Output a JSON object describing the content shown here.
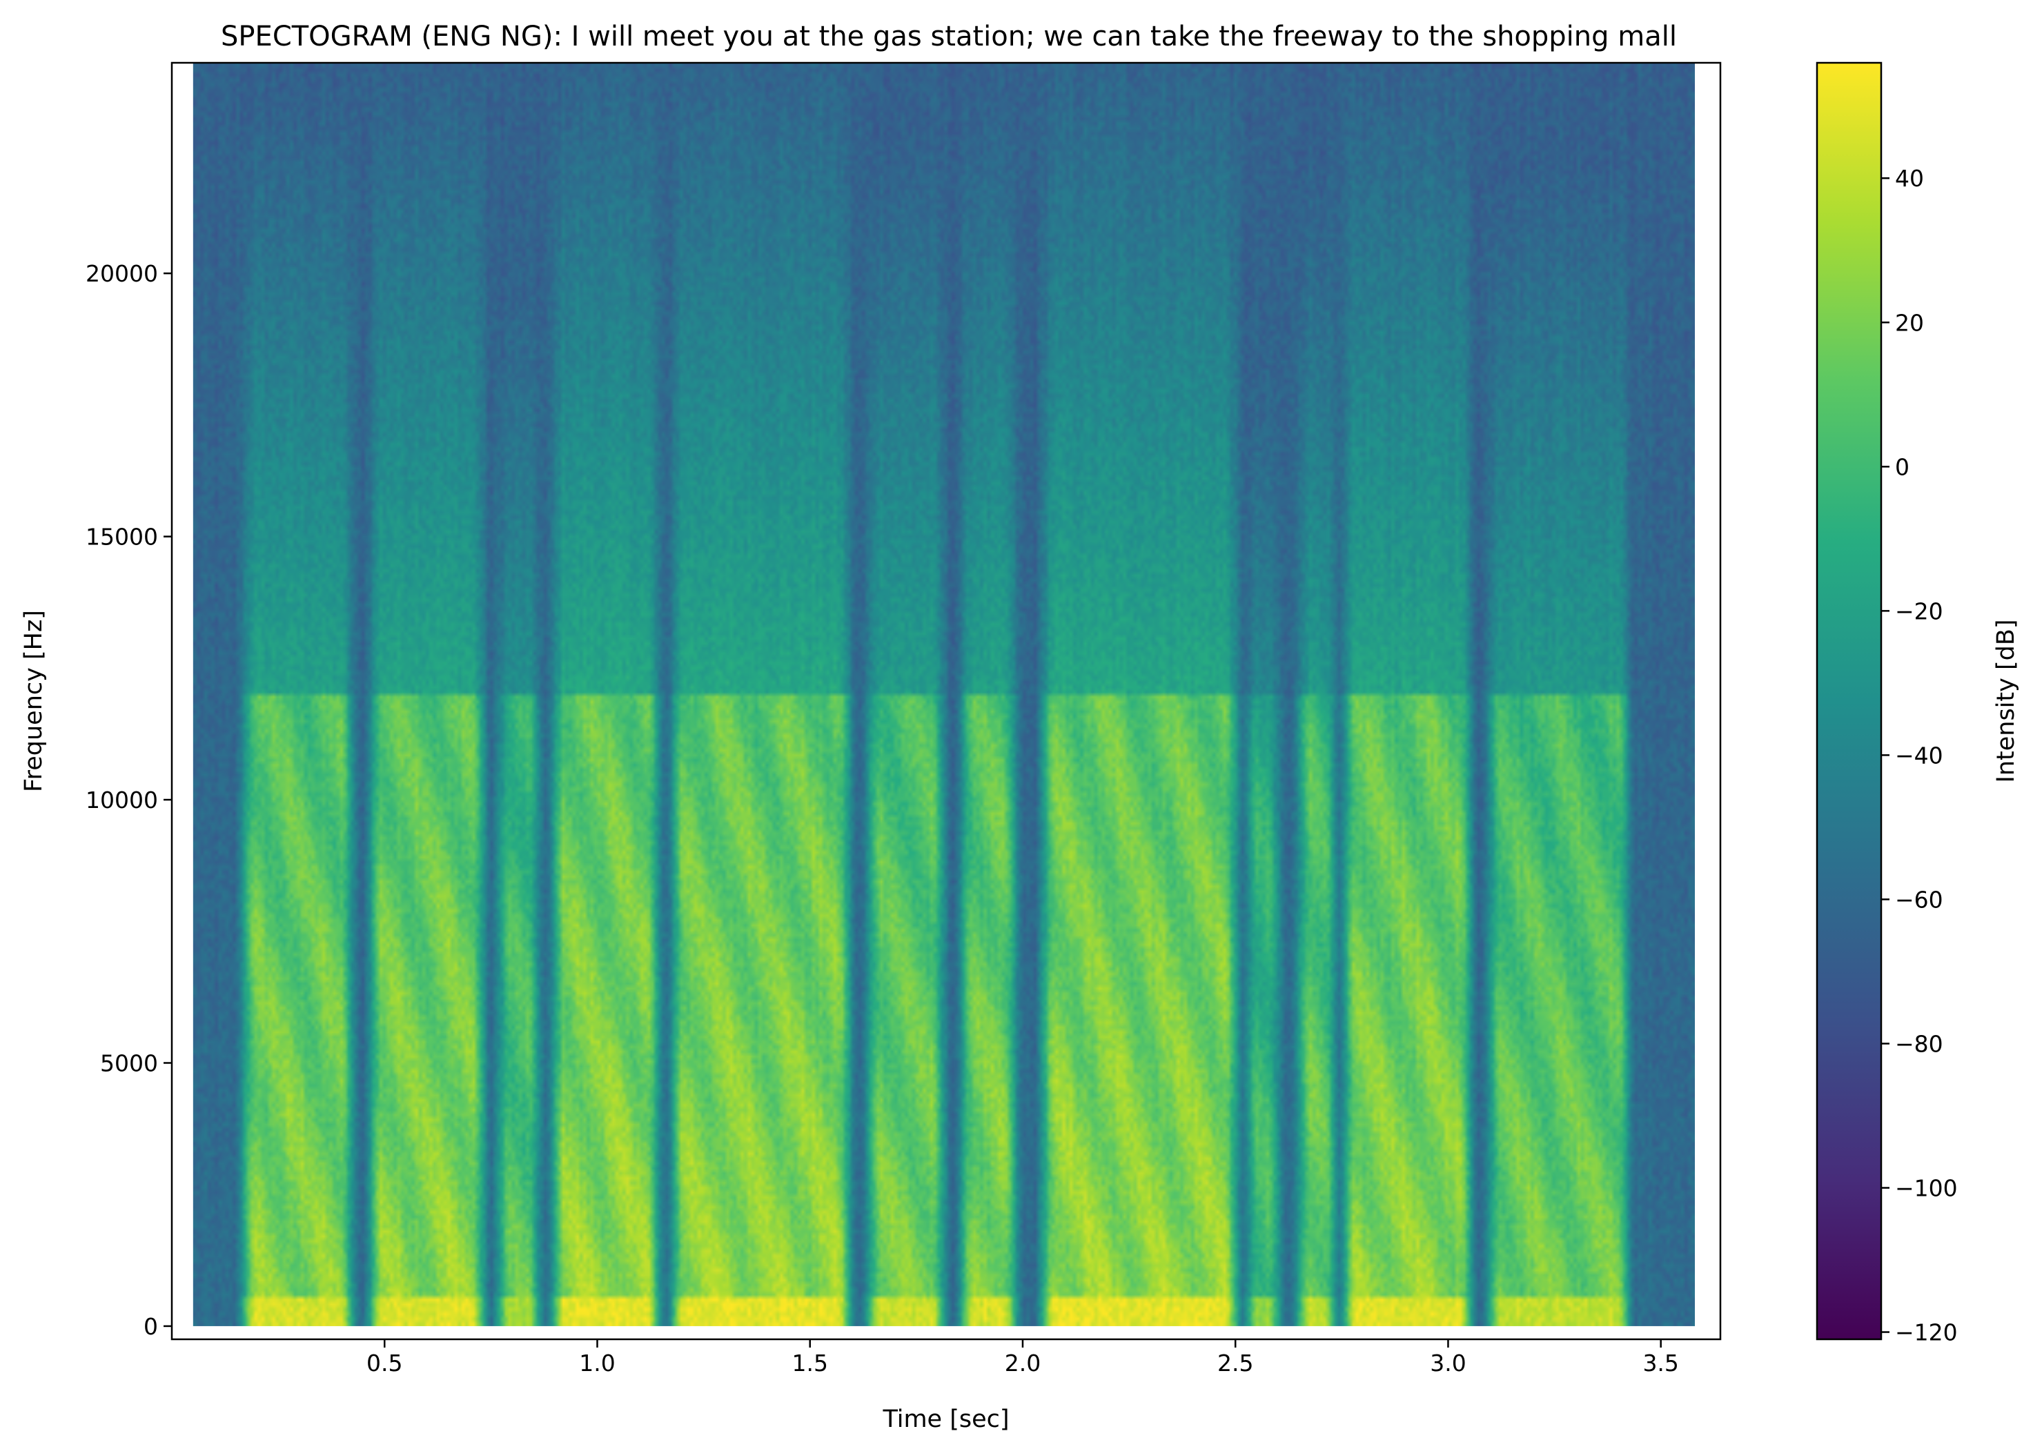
{
  "chart_data": {
    "type": "heatmap",
    "title": "SPECTOGRAM (ENG NG): I will meet you at the gas station; we can take the freeway to the shopping mall",
    "xlabel": "Time [sec]",
    "ylabel": "Frequency [Hz]",
    "colorbar_label": "Intensity [dB]",
    "colormap": "viridis",
    "colormap_stops": [
      "#440154",
      "#472c7a",
      "#3b518b",
      "#2c718e",
      "#21908d",
      "#27ad81",
      "#5cc863",
      "#aadc32",
      "#fde725"
    ],
    "xlim": [
      0.0,
      3.64
    ],
    "ylim": [
      -250,
      24000
    ],
    "data_time_range": [
      0.05,
      3.58
    ],
    "data_freq_range": [
      0,
      24000
    ],
    "x_ticks": [
      {
        "value": 0.5,
        "label": "0.5"
      },
      {
        "value": 1.0,
        "label": "1.0"
      },
      {
        "value": 1.5,
        "label": "1.5"
      },
      {
        "value": 2.0,
        "label": "2.0"
      },
      {
        "value": 2.5,
        "label": "2.5"
      },
      {
        "value": 3.0,
        "label": "3.0"
      },
      {
        "value": 3.5,
        "label": "3.5"
      }
    ],
    "y_ticks": [
      {
        "value": 0,
        "label": "0"
      },
      {
        "value": 5000,
        "label": "5000"
      },
      {
        "value": 10000,
        "label": "10000"
      },
      {
        "value": 15000,
        "label": "15000"
      },
      {
        "value": 20000,
        "label": "20000"
      }
    ],
    "colorbar_range": [
      -121,
      56
    ],
    "colorbar_ticks": [
      {
        "value": 40,
        "label": "40"
      },
      {
        "value": 20,
        "label": "20"
      },
      {
        "value": 0,
        "label": "0"
      },
      {
        "value": -20,
        "label": "−20"
      },
      {
        "value": -40,
        "label": "−40"
      },
      {
        "value": -60,
        "label": "−60"
      },
      {
        "value": -80,
        "label": "−80"
      },
      {
        "value": -100,
        "label": "−100"
      },
      {
        "value": -120,
        "label": "−120"
      }
    ],
    "speech_segments": [
      {
        "start": 0.17,
        "end": 0.42,
        "peak_db": 35
      },
      {
        "start": 0.47,
        "end": 0.73,
        "peak_db": 38
      },
      {
        "start": 0.77,
        "end": 0.86,
        "peak_db": 22
      },
      {
        "start": 0.9,
        "end": 1.14,
        "peak_db": 40
      },
      {
        "start": 1.18,
        "end": 1.59,
        "peak_db": 40
      },
      {
        "start": 1.64,
        "end": 1.81,
        "peak_db": 32
      },
      {
        "start": 1.86,
        "end": 1.98,
        "peak_db": 35
      },
      {
        "start": 2.05,
        "end": 2.5,
        "peak_db": 40
      },
      {
        "start": 2.53,
        "end": 2.6,
        "peak_db": 15
      },
      {
        "start": 2.65,
        "end": 2.73,
        "peak_db": 30
      },
      {
        "start": 2.76,
        "end": 3.05,
        "peak_db": 38
      },
      {
        "start": 3.1,
        "end": 3.42,
        "peak_db": 30
      }
    ],
    "noise_floor_db": -58
  }
}
